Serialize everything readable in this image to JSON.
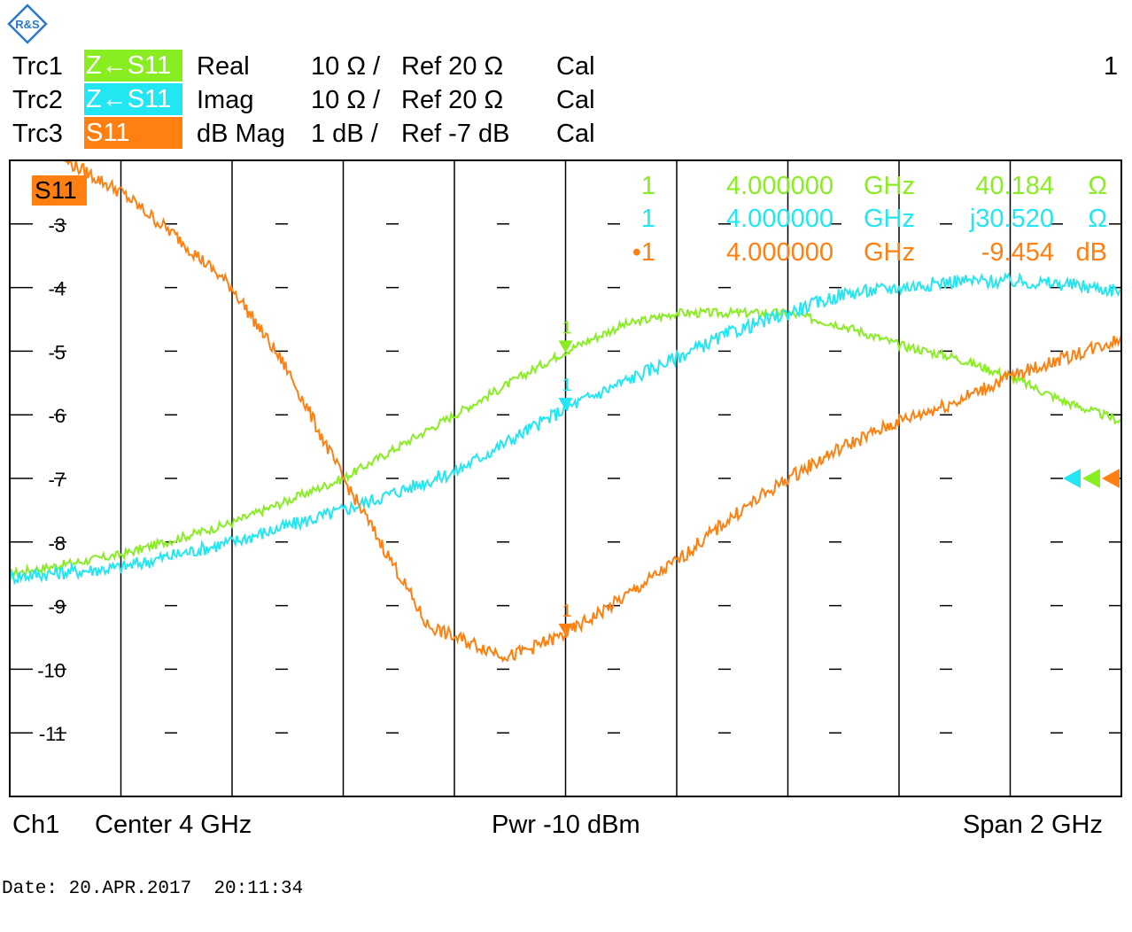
{
  "logo_text": "R&S",
  "top_right_number": "1",
  "traces": [
    {
      "name": "Trc1",
      "meas": "Z←S11",
      "format": "Real",
      "scale": "10 Ω /",
      "ref": "Ref 20 Ω",
      "cal": "Cal",
      "color": "#88ee22"
    },
    {
      "name": "Trc2",
      "meas": "Z←S11",
      "format": "Imag",
      "scale": "10 Ω /",
      "ref": "Ref 20 Ω",
      "cal": "Cal",
      "color": "#22e6f2"
    },
    {
      "name": "Trc3",
      "meas": "S11",
      "format": "dB Mag",
      "scale": "1 dB /",
      "ref": "Ref -7 dB",
      "cal": "Cal",
      "color": "#ff8011"
    }
  ],
  "active_trace_label": "S11",
  "markers": [
    {
      "num": "1",
      "freq": "4.000000",
      "unit": "GHz",
      "value": "40.184",
      "vunit": "Ω",
      "color": "#88ee22"
    },
    {
      "num": "1",
      "freq": "4.000000",
      "unit": "GHz",
      "value": "j30.520",
      "vunit": "Ω",
      "color": "#22e6f2"
    },
    {
      "num": "•1",
      "freq": "4.000000",
      "unit": "GHz",
      "value": "-9.454",
      "vunit": "dB",
      "color": "#ff8011"
    }
  ],
  "footer": {
    "channel": "Ch1",
    "center": "Center  4 GHz",
    "power": "Pwr  -10 dBm",
    "span": "Span  2 GHz"
  },
  "date_line": "Date: 20.APR.2017  20:11:34",
  "chart_data": {
    "type": "line",
    "xlabel": "",
    "ylabel": "",
    "x_unit": "GHz",
    "xlim": [
      3.0,
      5.0
    ],
    "ylim": [
      -12,
      -2
    ],
    "yticks": [
      -3,
      -4,
      -5,
      -6,
      -7,
      -8,
      -9,
      -10,
      -11
    ],
    "ytick_labels": [
      "-3",
      "-4",
      "-5",
      "-6",
      "-7",
      "-8",
      "-9",
      "-10",
      "-11"
    ],
    "grid": true,
    "reference_level": -7,
    "marker_x": 4.0,
    "series": [
      {
        "name": "Trc1",
        "color": "#88ee22",
        "x": [
          3.0,
          3.2,
          3.4,
          3.6,
          3.8,
          3.9,
          4.0,
          4.1,
          4.2,
          4.3,
          4.4,
          4.5,
          4.6,
          4.7,
          4.8,
          4.9,
          5.0
        ],
        "y": [
          -8.5,
          -8.2,
          -7.7,
          -7.0,
          -6.0,
          -5.5,
          -5.0,
          -4.6,
          -4.4,
          -4.4,
          -4.4,
          -4.6,
          -4.9,
          -5.1,
          -5.4,
          -5.8,
          -6.1
        ]
      },
      {
        "name": "Trc2",
        "color": "#22e6f2",
        "x": [
          3.0,
          3.2,
          3.4,
          3.6,
          3.8,
          3.9,
          4.0,
          4.1,
          4.2,
          4.3,
          4.4,
          4.5,
          4.6,
          4.7,
          4.8,
          4.9,
          5.0
        ],
        "y": [
          -8.55,
          -8.4,
          -8.0,
          -7.5,
          -6.9,
          -6.4,
          -5.9,
          -5.5,
          -5.1,
          -4.7,
          -4.4,
          -4.1,
          -4.0,
          -3.9,
          -3.9,
          -3.95,
          -4.05
        ]
      },
      {
        "name": "Trc3",
        "color": "#ff8011",
        "x": [
          3.1,
          3.2,
          3.3,
          3.4,
          3.5,
          3.6,
          3.7,
          3.75,
          3.8,
          3.9,
          4.0,
          4.1,
          4.2,
          4.3,
          4.4,
          4.5,
          4.6,
          4.7,
          4.8,
          4.9,
          5.0
        ],
        "y": [
          -2.0,
          -2.5,
          -3.2,
          -4.0,
          -5.3,
          -7.0,
          -8.5,
          -9.3,
          -9.5,
          -9.8,
          -9.45,
          -8.9,
          -8.3,
          -7.6,
          -7.0,
          -6.5,
          -6.1,
          -5.8,
          -5.4,
          -5.1,
          -4.8
        ]
      }
    ]
  }
}
